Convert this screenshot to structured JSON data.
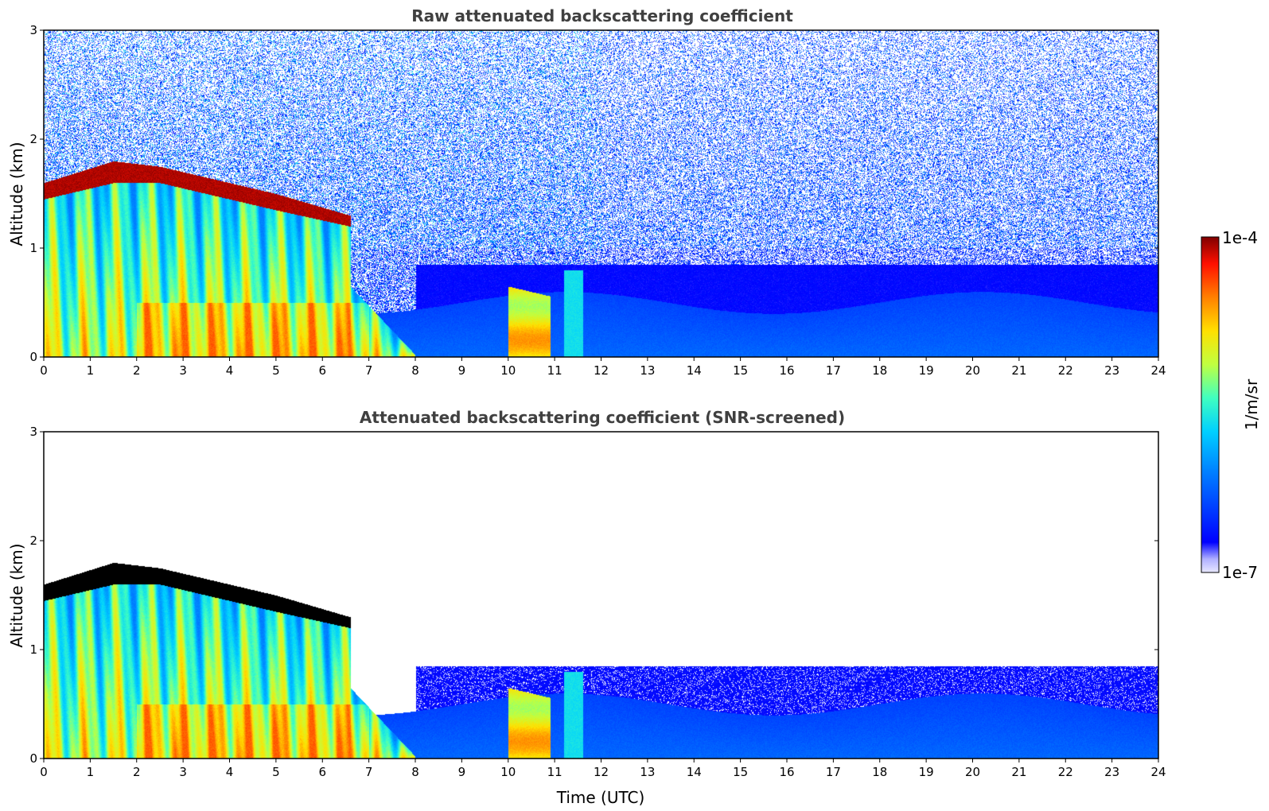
{
  "chart_data": [
    {
      "type": "heatmap",
      "title": "Raw attenuated backscattering coefficient",
      "xlabel": "",
      "ylabel": "Altitude (km)",
      "xlim": [
        0,
        24
      ],
      "ylim": [
        0,
        3
      ],
      "x_ticks": [
        "0",
        "1",
        "2",
        "3",
        "4",
        "5",
        "6",
        "7",
        "8",
        "9",
        "10",
        "11",
        "12",
        "13",
        "14",
        "15",
        "16",
        "17",
        "18",
        "19",
        "20",
        "21",
        "22",
        "23",
        "24"
      ],
      "y_ticks": [
        "0",
        "1",
        "2",
        "3"
      ],
      "cloud_layer": {
        "description_values": [
          {
            "time": 0.0,
            "base_km": 1.45,
            "top_km": 1.6
          },
          {
            "time": 1.5,
            "base_km": 1.6,
            "top_km": 1.8
          },
          {
            "time": 2.5,
            "base_km": 1.6,
            "top_km": 1.75
          },
          {
            "time": 4.0,
            "base_km": 1.45,
            "top_km": 1.6
          },
          {
            "time": 5.0,
            "base_km": 1.35,
            "top_km": 1.5
          },
          {
            "time": 6.6,
            "base_km": 1.2,
            "top_km": 1.3
          }
        ]
      },
      "noisy": true
    },
    {
      "type": "heatmap",
      "title": "Attenuated backscattering coefficient (SNR-screened)",
      "xlabel": "Time (UTC)",
      "ylabel": "Altitude (km)",
      "xlim": [
        0,
        24
      ],
      "ylim": [
        0,
        3
      ],
      "x_ticks": [
        "0",
        "1",
        "2",
        "3",
        "4",
        "5",
        "6",
        "7",
        "8",
        "9",
        "10",
        "11",
        "12",
        "13",
        "14",
        "15",
        "16",
        "17",
        "18",
        "19",
        "20",
        "21",
        "22",
        "23",
        "24"
      ],
      "y_ticks": [
        "0",
        "1",
        "2",
        "3"
      ],
      "noisy": false
    }
  ],
  "colorbar": {
    "label": "1/m/sr",
    "max_label": "1e-4",
    "min_label": "1e-7",
    "colormap": "jet"
  }
}
